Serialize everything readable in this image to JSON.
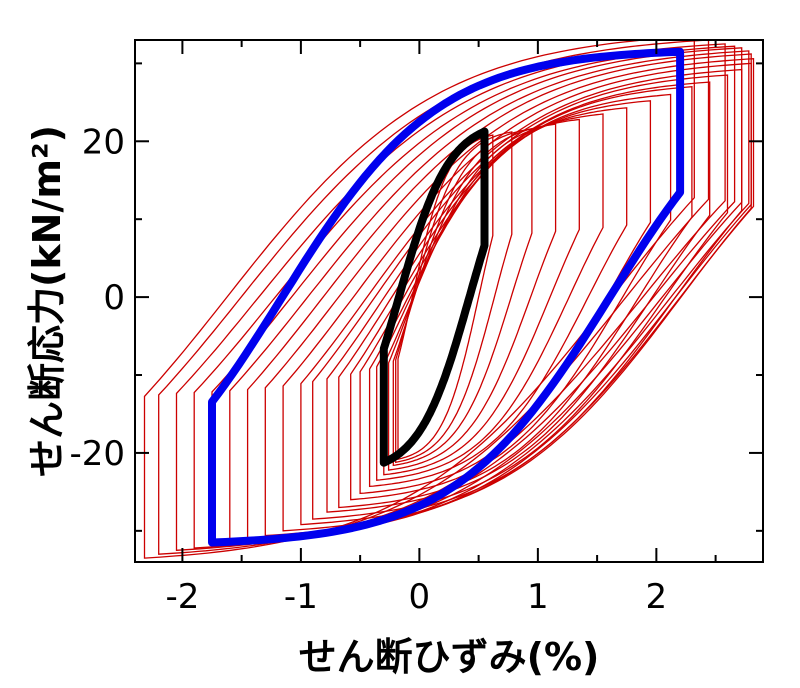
{
  "chart_data": {
    "type": "line",
    "title": "",
    "xlabel": "せん断ひずみ(%)",
    "ylabel": "せん断応力(kN/m²)",
    "xlim": [
      -2.4,
      2.9
    ],
    "ylim": [
      -34,
      33
    ],
    "x_ticks": [
      -2,
      -1,
      0,
      1,
      2
    ],
    "x_tick_labels": [
      "-2",
      "-1",
      "0",
      "1",
      "2"
    ],
    "y_ticks": [
      -20,
      0,
      20
    ],
    "y_tick_labels": [
      "-20",
      "0",
      "20"
    ],
    "grid": false,
    "legend": "none",
    "series": [
      {
        "color": "#cc0000",
        "style": "thin hysteresis family",
        "loops": [
          {
            "xmin": -2.32,
            "xmax": 2.32,
            "tau": 33.5
          },
          {
            "xmin": -2.2,
            "xmax": 2.44,
            "tau": 33.0
          },
          {
            "xmin": -2.05,
            "xmax": 2.58,
            "tau": 32.5
          },
          {
            "xmin": -1.9,
            "xmax": 2.66,
            "tau": 32.2
          },
          {
            "xmin": -1.75,
            "xmax": 2.72,
            "tau": 32.0
          },
          {
            "xmin": -1.6,
            "xmax": 2.78,
            "tau": 31.6
          },
          {
            "xmin": -1.45,
            "xmax": 2.8,
            "tau": 31.2
          },
          {
            "xmin": -1.3,
            "xmax": 2.82,
            "tau": 30.6
          },
          {
            "xmin": -1.15,
            "xmax": 2.8,
            "tau": 30.0
          },
          {
            "xmin": -1.0,
            "xmax": 2.72,
            "tau": 29.2
          },
          {
            "xmin": -0.9,
            "xmax": 2.6,
            "tau": 28.5
          },
          {
            "xmin": -0.78,
            "xmax": 2.45,
            "tau": 27.6
          },
          {
            "xmin": -0.68,
            "xmax": 2.3,
            "tau": 27.0
          },
          {
            "xmin": -0.58,
            "xmax": 2.12,
            "tau": 26.0
          },
          {
            "xmin": -0.5,
            "xmax": 1.95,
            "tau": 25.2
          },
          {
            "xmin": -0.42,
            "xmax": 1.75,
            "tau": 24.3
          },
          {
            "xmin": -0.36,
            "xmax": 1.55,
            "tau": 23.5
          },
          {
            "xmin": -0.3,
            "xmax": 1.35,
            "tau": 22.8
          },
          {
            "xmin": -0.26,
            "xmax": 1.15,
            "tau": 22.2
          },
          {
            "xmin": -0.22,
            "xmax": 0.95,
            "tau": 21.6
          },
          {
            "xmin": -0.2,
            "xmax": 0.78,
            "tau": 21.2
          },
          {
            "xmin": -0.18,
            "xmax": 0.62,
            "tau": 20.8
          }
        ]
      },
      {
        "color": "#0000ee",
        "style": "thick",
        "xmin": -1.75,
        "xmax": 2.2,
        "tau_min": -32,
        "tau_max": 31
      },
      {
        "color": "#000000",
        "style": "thick",
        "xmin": -0.3,
        "xmax": 0.55,
        "tau_min": -21,
        "tau_max": 21.5
      }
    ]
  }
}
